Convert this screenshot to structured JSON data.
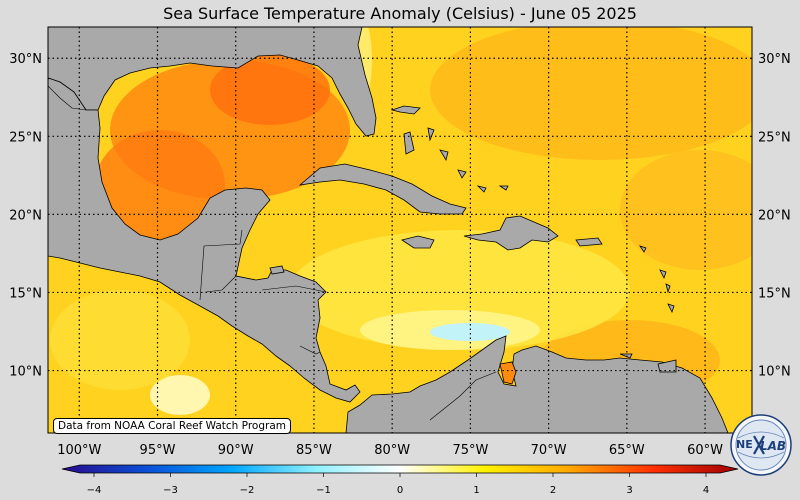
{
  "title": "Sea Surface Temperature Anomaly (Celsius) - June 05 2025",
  "credit": "Data from NOAA Coral Reef Watch Program",
  "logo": {
    "text_left": "NE",
    "text_right": "LAB",
    "icon": "nexlab-globe-logo"
  },
  "map": {
    "lon_labels": [
      "100°W",
      "95°W",
      "90°W",
      "85°W",
      "80°W",
      "75°W",
      "70°W",
      "65°W",
      "60°W"
    ],
    "lat_labels": [
      "30°N",
      "25°N",
      "20°N",
      "15°N",
      "10°N"
    ],
    "lon_range": [
      -102,
      -57
    ],
    "lat_range": [
      6,
      32
    ],
    "land_color": "#a9a9a9",
    "grid": "dotted"
  },
  "colorbar": {
    "min": -4,
    "max": 4,
    "ticks": [
      "−4",
      "−3",
      "−2",
      "−1",
      "0",
      "1",
      "2",
      "3",
      "4"
    ],
    "colors": [
      "#2a0a8c",
      "#0a4fd6",
      "#00a6ff",
      "#8ff0ff",
      "#ffffff",
      "#fff200",
      "#ffa800",
      "#ff3000",
      "#a00000"
    ]
  }
}
